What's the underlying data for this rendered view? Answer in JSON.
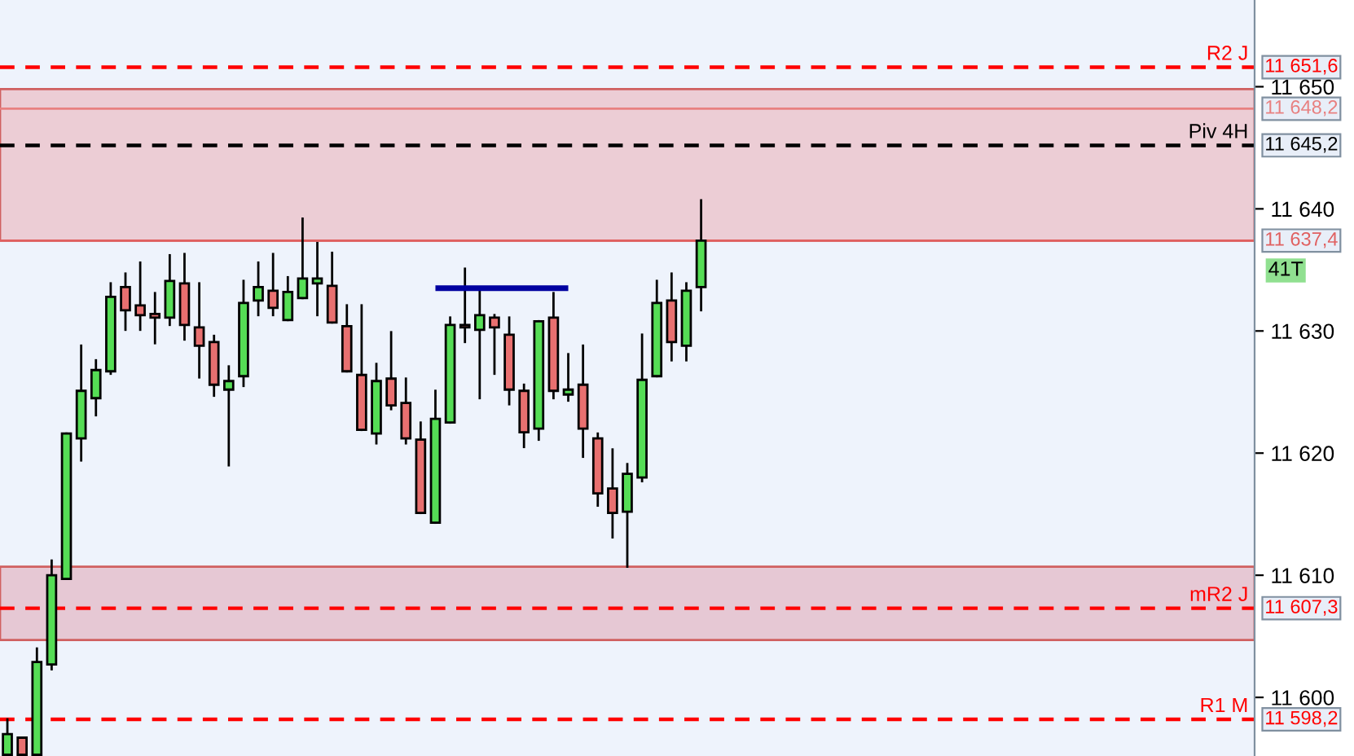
{
  "chart_data": {
    "type": "candlestick",
    "categories": [
      null,
      null,
      null,
      null,
      null,
      null,
      null,
      null,
      null,
      null,
      null,
      null,
      null,
      null,
      null,
      null,
      null,
      null,
      null,
      null,
      null,
      null,
      null,
      null,
      null,
      null,
      null,
      null,
      null,
      null,
      null,
      null,
      null,
      null,
      null,
      null,
      null,
      null,
      null,
      null,
      null,
      null,
      null,
      null,
      null,
      null,
      null,
      null,
      null,
      null,
      null,
      null,
      null,
      null,
      null,
      null,
      null,
      null,
      null,
      null,
      null,
      null,
      null,
      null,
      null,
      null,
      null,
      null,
      null,
      null,
      null,
      null,
      null,
      null,
      null,
      null,
      null,
      null,
      null,
      null,
      null,
      null,
      null,
      null,
      null
    ],
    "ohlc": [
      [
        11595.3,
        11598.2,
        11595.3,
        11597.0
      ],
      [
        11596.7,
        11596.7,
        11595.3,
        11595.3
      ],
      [
        11595.3,
        11604.0,
        11595.3,
        11602.9
      ],
      [
        11602.7,
        11611.2,
        11602.3,
        11610.0
      ],
      [
        11609.7,
        11621.6,
        11609.7,
        11621.6
      ],
      [
        11621.2,
        11628.8,
        11619.4,
        11625.1
      ],
      [
        11624.5,
        11627.6,
        11623.1,
        11626.8
      ],
      [
        11626.7,
        11633.9,
        11626.5,
        11632.8
      ],
      [
        11633.6,
        11634.7,
        11630.1,
        11631.7
      ],
      [
        11632.1,
        11635.6,
        11630.1,
        11631.3
      ],
      [
        11631.4,
        11633.1,
        11629.0,
        11631.1
      ],
      [
        11631.1,
        11636.2,
        11630.5,
        11634.1
      ],
      [
        11633.9,
        11636.3,
        11629.3,
        11630.5
      ],
      [
        11630.3,
        11633.9,
        11626.2,
        11628.8
      ],
      [
        11629.1,
        11629.6,
        11624.7,
        11625.6
      ],
      [
        11625.2,
        11627.1,
        11619.0,
        11625.9
      ],
      [
        11626.3,
        11634.1,
        11625.5,
        11632.3
      ],
      [
        11632.5,
        11635.6,
        11631.3,
        11633.6
      ],
      [
        11633.3,
        11636.3,
        11631.3,
        11631.9
      ],
      [
        11630.9,
        11634.4,
        11630.9,
        11633.2
      ],
      [
        11632.7,
        11639.2,
        11632.7,
        11634.3
      ],
      [
        11633.9,
        11637.2,
        11631.3,
        11634.3
      ],
      [
        11633.7,
        11636.4,
        11630.7,
        11630.7
      ],
      [
        11630.4,
        11632.1,
        11626.7,
        11626.7
      ],
      [
        11626.4,
        11632.1,
        11621.9,
        11621.9
      ],
      [
        11621.6,
        11627.3,
        11620.8,
        11625.9
      ],
      [
        11626.1,
        11629.9,
        11623.6,
        11623.9
      ],
      [
        11624.1,
        11626.1,
        11620.8,
        11621.2
      ],
      [
        11621.1,
        11622.5,
        11615.1,
        11615.1
      ],
      [
        11614.3,
        11625.1,
        11614.3,
        11622.8
      ],
      [
        11622.5,
        11631.1,
        11622.5,
        11630.5
      ],
      [
        11630.5,
        11635.1,
        11629.1,
        11630.3
      ],
      [
        11630.1,
        11633.2,
        11624.5,
        11631.3
      ],
      [
        11631.1,
        11631.3,
        11626.5,
        11630.3
      ],
      [
        11629.7,
        11631.1,
        11624.0,
        11625.2
      ],
      [
        11625.1,
        11625.6,
        11620.5,
        11621.7
      ],
      [
        11622.0,
        11630.8,
        11621.1,
        11630.8
      ],
      [
        11631.1,
        11633.1,
        11624.5,
        11625.1
      ],
      [
        11624.8,
        11628.1,
        11624.3,
        11625.2
      ],
      [
        11625.6,
        11628.8,
        11619.7,
        11622.0
      ],
      [
        11621.2,
        11621.6,
        11615.7,
        11616.7
      ],
      [
        11617.1,
        11620.3,
        11613.1,
        11615.1
      ],
      [
        11615.2,
        11619.1,
        11610.7,
        11618.3
      ],
      [
        11618.0,
        11629.7,
        11617.7,
        11626.0
      ],
      [
        11626.3,
        11634.1,
        11626.3,
        11632.3
      ],
      [
        11632.5,
        11634.7,
        11627.6,
        11629.1
      ],
      [
        11628.8,
        11633.9,
        11627.6,
        11633.3
      ],
      [
        11633.6,
        11640.7,
        11631.7,
        11637.4
      ],
      null,
      null,
      null,
      null,
      null,
      null,
      null,
      null,
      null,
      null,
      null,
      null,
      null,
      null,
      null,
      null,
      null,
      null,
      null,
      null,
      null,
      null,
      null,
      null,
      null,
      null,
      null,
      null,
      null,
      null,
      null,
      null,
      null,
      null,
      null,
      null,
      null
    ],
    "colors": [
      "#55dd55",
      "#e87070",
      "#55dd55",
      "#55dd55",
      "#55dd55",
      "#55dd55",
      "#55dd55",
      "#55dd55",
      "#e87070",
      "#e87070",
      "#e87070",
      "#55dd55",
      "#e87070",
      "#e87070",
      "#e87070",
      "#55dd55",
      "#55dd55",
      "#55dd55",
      "#e87070",
      "#55dd55",
      "#55dd55",
      "#55dd55",
      "#e87070",
      "#e87070",
      "#e87070",
      "#55dd55",
      "#e87070",
      "#e87070",
      "#e87070",
      "#55dd55",
      "#55dd55",
      "#e87070",
      "#55dd55",
      "#e87070",
      "#e87070",
      "#e87070",
      "#55dd55",
      "#e87070",
      "#55dd55",
      "#e87070",
      "#e87070",
      "#e87070",
      "#55dd55",
      "#55dd55",
      "#55dd55",
      "#e87070",
      "#55dd55",
      "#55dd55",
      null,
      null,
      null,
      null,
      null,
      null,
      null,
      null,
      null,
      null,
      null,
      null,
      null,
      null,
      null,
      null,
      null,
      null,
      null,
      null,
      null,
      null,
      null,
      null,
      null,
      null,
      null,
      null,
      null,
      null,
      null,
      null,
      null,
      null,
      null,
      null,
      null
    ],
    "series": [
      {
        "type": "line",
        "color": "#0000a0",
        "values": [
          null,
          null,
          null,
          null,
          null,
          null,
          null,
          null,
          null,
          null,
          null,
          null,
          null,
          null,
          null,
          null,
          null,
          null,
          null,
          null,
          null,
          null,
          null,
          null,
          null,
          null,
          null,
          null,
          null,
          11633.5,
          11633.5,
          11633.5,
          11633.5,
          11633.5,
          11633.5,
          11633.5,
          11633.5,
          11633.5,
          11633.5,
          null,
          null,
          null,
          null,
          null,
          null,
          null,
          null,
          null,
          null,
          null,
          null,
          null,
          null,
          null,
          null,
          null,
          null,
          null,
          null,
          null,
          null,
          null,
          null,
          null,
          null,
          null,
          null,
          null,
          null,
          null,
          null,
          null,
          null,
          null,
          null,
          null,
          null,
          null,
          null,
          null,
          null,
          null,
          null,
          null,
          null
        ]
      }
    ],
    "ylim": [
      11595.2,
      11657.1
    ],
    "yticks": [
      {
        "value": 11600,
        "label": "11 600"
      },
      {
        "value": 11610,
        "label": "11 610"
      },
      {
        "value": 11620,
        "label": "11 620"
      },
      {
        "value": 11630,
        "label": "11 630"
      },
      {
        "value": 11640,
        "label": "11 640"
      },
      {
        "value": 11650,
        "label": "11 650"
      }
    ],
    "tick_labels": "y",
    "ref_lines": [
      {
        "axis": "y",
        "value": 11651.6,
        "label": "R2 J",
        "color": "#ff0000",
        "line_style": "dashed"
      },
      {
        "axis": "y",
        "value": 11648.2,
        "label": null,
        "color": "#e88080",
        "line_style": "solid"
      },
      {
        "axis": "y",
        "value": 11645.2,
        "label": "Piv 4H",
        "color": "#000000",
        "line_style": "dashed"
      },
      {
        "axis": "y",
        "value": 11637.4,
        "label": null,
        "color": "#e06060",
        "line_style": "solid"
      },
      {
        "axis": "y",
        "value": 11607.3,
        "label": "mR2 J",
        "color": "#ff0000",
        "line_style": "dashed"
      },
      {
        "axis": "y",
        "value": 11598.2,
        "label": "R1 M",
        "color": "#ff0000",
        "line_style": "dashed"
      }
    ],
    "bands": [
      {
        "axis": "y",
        "from": 11637.4,
        "to": 11649.8,
        "color": "#eccdd5"
      },
      {
        "axis": "y",
        "from": 11604.7,
        "to": 11610.7,
        "color": "#e6c8d4"
      }
    ],
    "annotations": [
      "11 651,6",
      "11 648,2",
      "11 645,2",
      "11 637,4",
      "11 607,3",
      "11 598,2",
      "41T"
    ]
  }
}
